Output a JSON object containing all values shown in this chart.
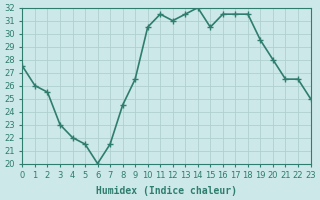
{
  "x": [
    0,
    1,
    2,
    3,
    4,
    5,
    6,
    7,
    8,
    9,
    10,
    11,
    12,
    13,
    14,
    15,
    16,
    17,
    18,
    19,
    20,
    21,
    22,
    23
  ],
  "y": [
    27.5,
    26.0,
    25.5,
    23.0,
    22.0,
    21.5,
    20.0,
    21.5,
    24.5,
    26.5,
    30.5,
    31.5,
    31.0,
    31.5,
    32.0,
    30.5,
    31.5,
    31.5,
    31.5,
    29.5,
    28.0,
    26.5,
    26.5,
    25.0
  ],
  "line_color": "#2e7d6e",
  "marker": "+",
  "bg_color": "#cce8e8",
  "grid_color": "#b0d0d0",
  "xlabel": "Humidex (Indice chaleur)",
  "ylim": [
    20,
    32
  ],
  "xlim": [
    0,
    23
  ],
  "yticks": [
    20,
    21,
    22,
    23,
    24,
    25,
    26,
    27,
    28,
    29,
    30,
    31,
    32
  ],
  "xticks": [
    0,
    1,
    2,
    3,
    4,
    5,
    6,
    7,
    8,
    9,
    10,
    11,
    12,
    13,
    14,
    15,
    16,
    17,
    18,
    19,
    20,
    21,
    22,
    23
  ],
  "tick_label_fontsize": 6,
  "xlabel_fontsize": 7,
  "line_width": 1.2,
  "marker_size": 4,
  "marker_edge_width": 1.0
}
